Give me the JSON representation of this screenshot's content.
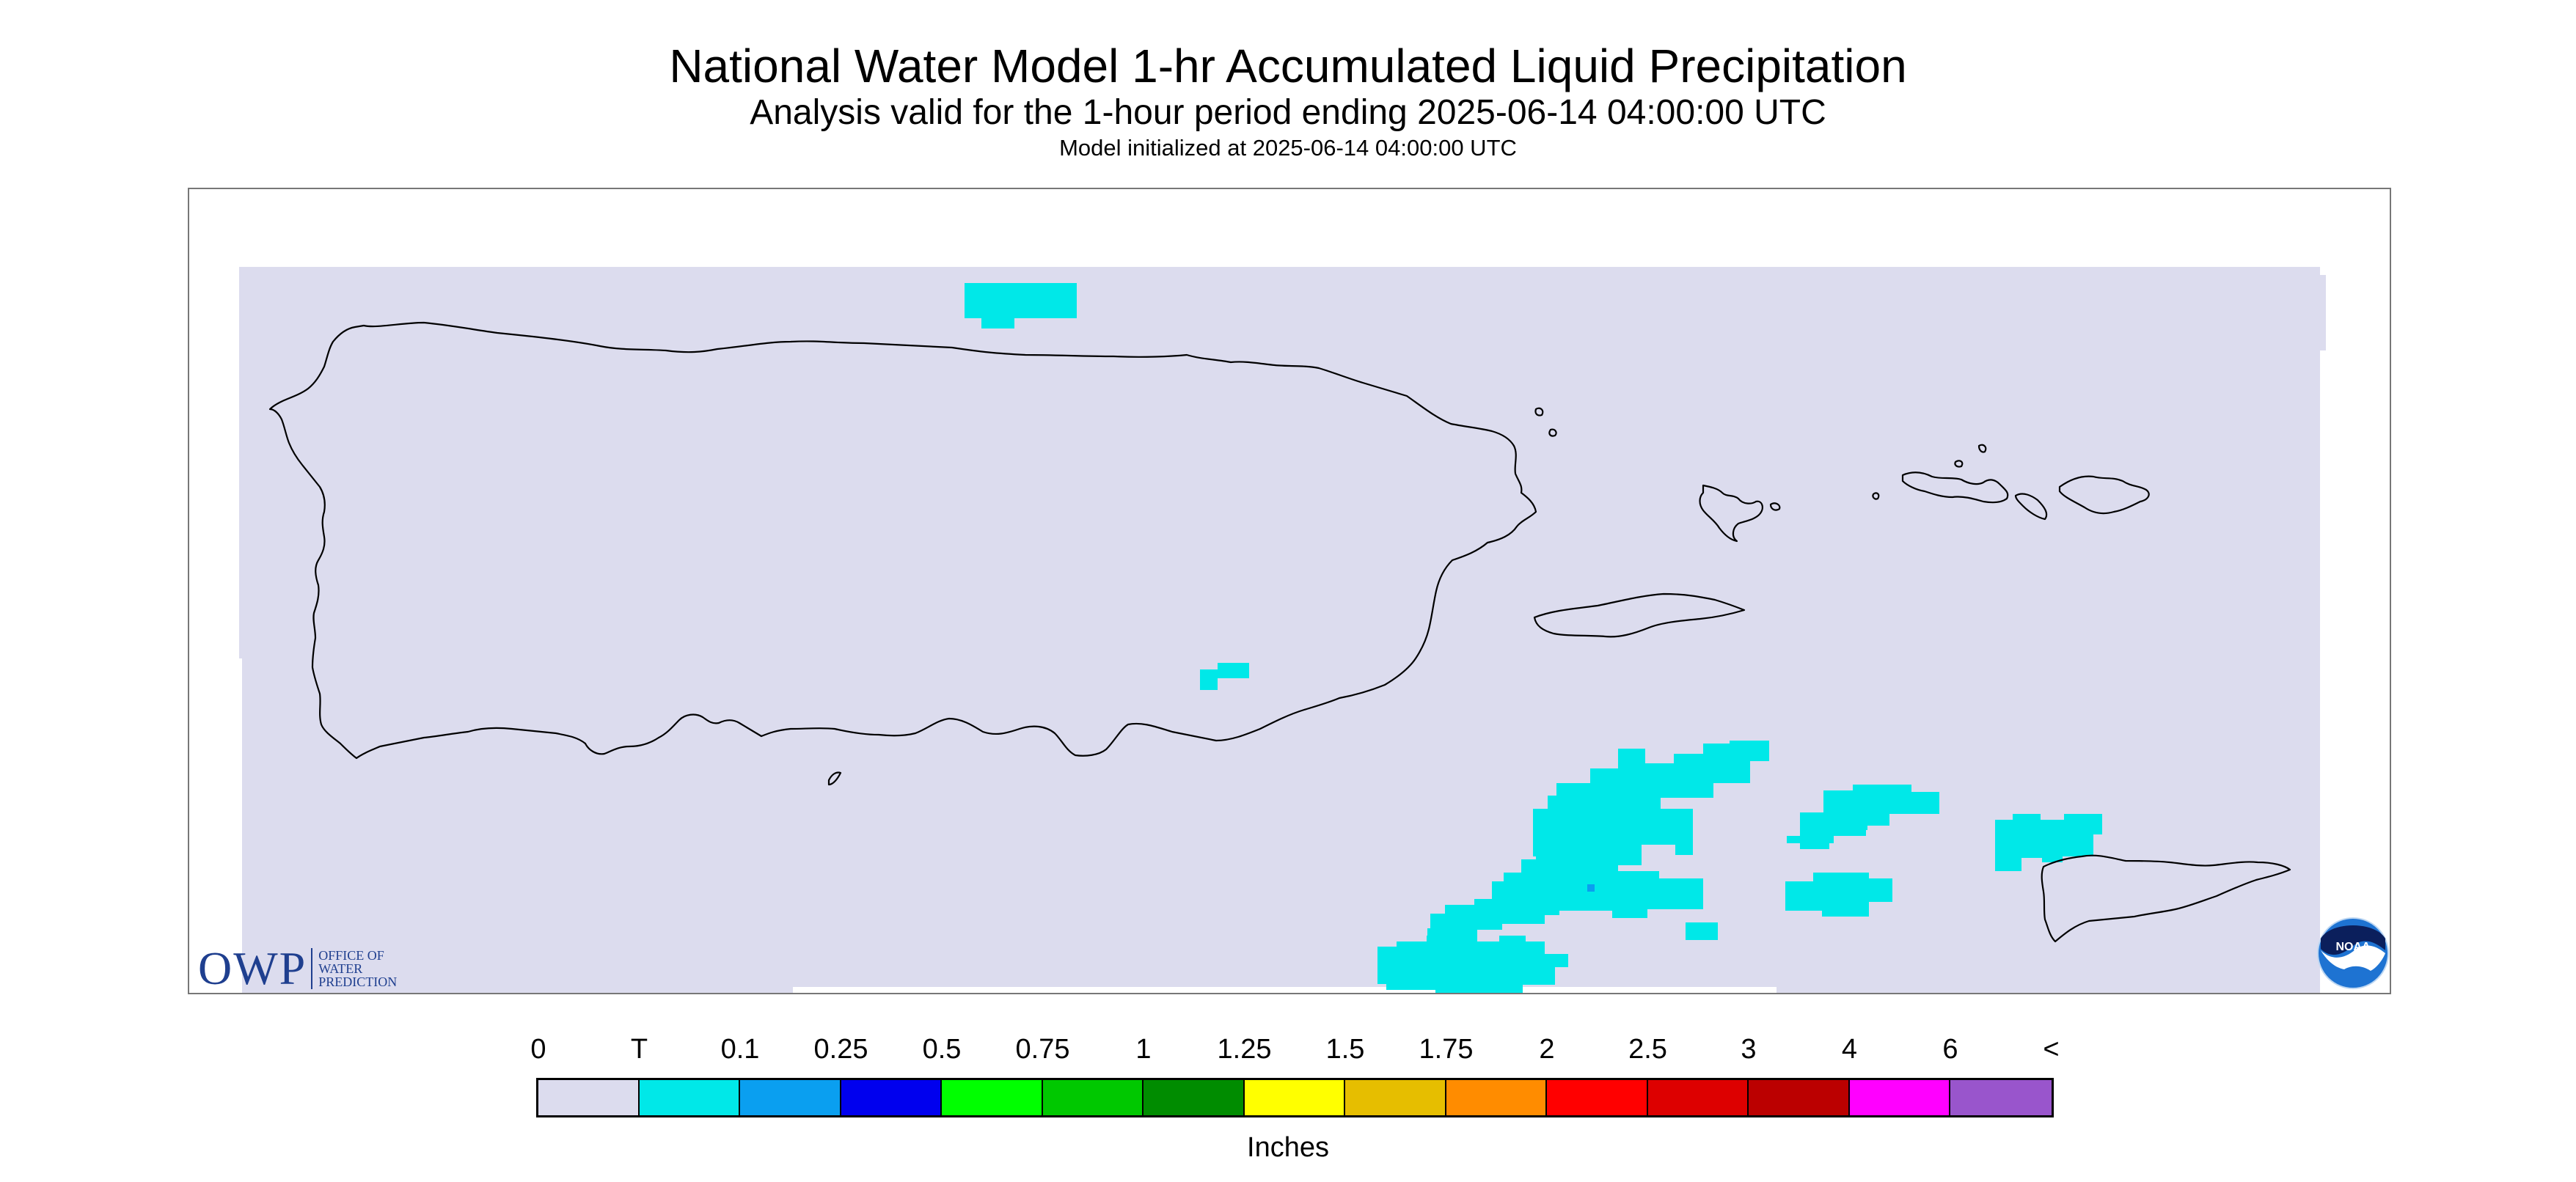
{
  "header": {
    "title": "National Water Model 1-hr Accumulated Liquid Precipitation",
    "subtitle": "Analysis valid for the 1-hour period ending 2025-06-14 04:00:00 UTC",
    "init_line": "Model initialized at 2025-06-14 04:00:00 UTC"
  },
  "map": {
    "background_color": "#dcdcee",
    "outline_color": "#000000",
    "precip_regions": [
      {
        "category": "T",
        "color": "#00e8e8"
      },
      {
        "category": "0.1",
        "color": "#0a9ff0"
      }
    ]
  },
  "logos": {
    "owp_initials": "OWP",
    "owp_lines": [
      "OFFICE OF",
      "WATER",
      "PREDICTION"
    ],
    "noaa_text": "NOAA"
  },
  "legend": {
    "labels": [
      "0",
      "T",
      "0.1",
      "0.25",
      "0.5",
      "0.75",
      "1",
      "1.25",
      "1.5",
      "1.75",
      "2",
      "2.5",
      "3",
      "4",
      "6",
      "<"
    ],
    "colors": [
      "#dcdcee",
      "#00e8e8",
      "#0a9ff0",
      "#0000ee",
      "#00ff00",
      "#00c800",
      "#008c00",
      "#ffff00",
      "#e6be00",
      "#ff8c00",
      "#ff0000",
      "#dd0000",
      "#bb0000",
      "#ff00ff",
      "#9955cc"
    ],
    "units": "Inches"
  }
}
